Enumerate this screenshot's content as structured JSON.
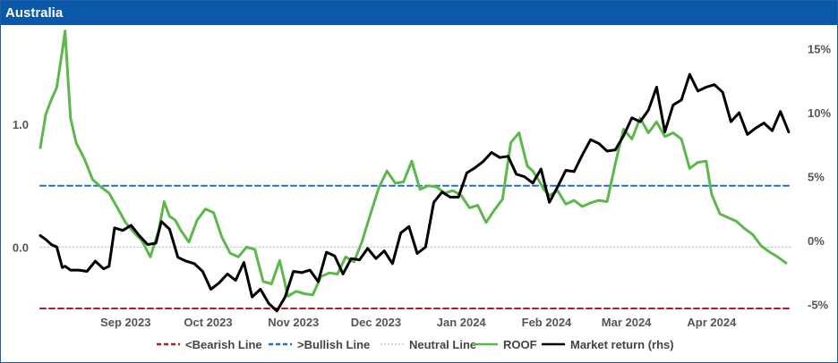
{
  "title": "Australia",
  "colors": {
    "title_bg": "#0b58a8",
    "bearish": "#b01c22",
    "bullish": "#1f6fc5",
    "neutral": "#c8c8c8",
    "roof": "#5cb84a",
    "market": "#000000"
  },
  "chart_data": {
    "type": "line",
    "title": "Australia",
    "x_range": [
      "2023-08-01",
      "2024-04-30"
    ],
    "x_ticks": [
      {
        "date": "2023-09-01",
        "label": "Sep 2023"
      },
      {
        "date": "2023-10-01",
        "label": "Oct 2023"
      },
      {
        "date": "2023-11-01",
        "label": "Nov 2023"
      },
      {
        "date": "2023-12-01",
        "label": "Dec 2023"
      },
      {
        "date": "2024-01-01",
        "label": "Jan 2024"
      },
      {
        "date": "2024-02-01",
        "label": "Feb 2024"
      },
      {
        "date": "2024-03-01",
        "label": "Mar 2024"
      },
      {
        "date": "2024-04-01",
        "label": "Apr 2024"
      }
    ],
    "y_left": {
      "min": -0.5,
      "max": 1.75,
      "ticks": [
        {
          "v": 0.0,
          "label": "0.0"
        },
        {
          "v": 1.0,
          "label": "1.0"
        }
      ]
    },
    "y_right": {
      "min": -5.3,
      "max": 16.3,
      "ticks": [
        {
          "v": -5,
          "label": "-5%"
        },
        {
          "v": 0,
          "label": "0%"
        },
        {
          "v": 5,
          "label": "5%"
        },
        {
          "v": 10,
          "label": "10%"
        },
        {
          "v": 15,
          "label": "15%"
        }
      ]
    },
    "series": [
      {
        "name": "<Bearish Line",
        "axis": "left",
        "style": "dashed",
        "x": [
          "2023-08-01",
          "2024-04-30"
        ],
        "values": [
          -0.5,
          -0.5
        ]
      },
      {
        "name": ">Bullish Line",
        "axis": "left",
        "style": "dashed",
        "x": [
          "2023-08-01",
          "2024-04-30"
        ],
        "values": [
          0.5,
          0.5
        ]
      },
      {
        "name": "Neutral Line",
        "axis": "left",
        "style": "dotted",
        "x": [
          "2023-08-01",
          "2024-04-30"
        ],
        "values": [
          0.0,
          0.0
        ]
      },
      {
        "name": "ROOF",
        "axis": "left",
        "style": "solid",
        "x": [
          "2023-08-01",
          "2023-08-03",
          "2023-08-05",
          "2023-08-07",
          "2023-08-09",
          "2023-08-10",
          "2023-08-11",
          "2023-08-12",
          "2023-08-14",
          "2023-08-17",
          "2023-08-20",
          "2023-08-23",
          "2023-08-26",
          "2023-08-29",
          "2023-09-01",
          "2023-09-04",
          "2023-09-07",
          "2023-09-10",
          "2023-09-13",
          "2023-09-15",
          "2023-09-17",
          "2023-09-19",
          "2023-09-21",
          "2023-09-24",
          "2023-09-27",
          "2023-09-30",
          "2023-10-03",
          "2023-10-06",
          "2023-10-09",
          "2023-10-12",
          "2023-10-15",
          "2023-10-18",
          "2023-10-21",
          "2023-10-24",
          "2023-10-27",
          "2023-10-30",
          "2023-11-02",
          "2023-11-05",
          "2023-11-08",
          "2023-11-11",
          "2023-11-14",
          "2023-11-17",
          "2023-11-20",
          "2023-11-23",
          "2023-11-26",
          "2023-11-29",
          "2023-12-02",
          "2023-12-05",
          "2023-12-08",
          "2023-12-11",
          "2023-12-14",
          "2023-12-17",
          "2023-12-20",
          "2023-12-23",
          "2023-12-26",
          "2023-12-29",
          "2024-01-01",
          "2024-01-04",
          "2024-01-07",
          "2024-01-10",
          "2024-01-13",
          "2024-01-16",
          "2024-01-19",
          "2024-01-22",
          "2024-01-25",
          "2024-01-27",
          "2024-01-29",
          "2024-01-31",
          "2024-02-02",
          "2024-02-05",
          "2024-02-08",
          "2024-02-11",
          "2024-02-14",
          "2024-02-17",
          "2024-02-20",
          "2024-02-23",
          "2024-02-26",
          "2024-02-29",
          "2024-03-03",
          "2024-03-06",
          "2024-03-09",
          "2024-03-12",
          "2024-03-15",
          "2024-03-18",
          "2024-03-21",
          "2024-03-24",
          "2024-03-27",
          "2024-03-30",
          "2024-04-01",
          "2024-04-04",
          "2024-04-07",
          "2024-04-10",
          "2024-04-13",
          "2024-04-16",
          "2024-04-19",
          "2024-04-22",
          "2024-04-25",
          "2024-04-28"
        ],
        "values": [
          0.81,
          1.08,
          1.2,
          1.3,
          1.6,
          1.76,
          1.4,
          1.05,
          0.85,
          0.72,
          0.55,
          0.49,
          0.44,
          0.32,
          0.2,
          0.12,
          0.05,
          -0.08,
          0.13,
          0.37,
          0.25,
          0.22,
          0.14,
          0.04,
          0.22,
          0.31,
          0.28,
          0.08,
          -0.05,
          -0.08,
          0.0,
          -0.02,
          -0.28,
          -0.3,
          -0.11,
          -0.4,
          -0.36,
          -0.38,
          -0.39,
          -0.24,
          -0.21,
          -0.22,
          -0.08,
          -0.12,
          0.05,
          0.27,
          0.48,
          0.62,
          0.52,
          0.53,
          0.7,
          0.47,
          0.5,
          0.49,
          0.44,
          0.46,
          0.42,
          0.32,
          0.34,
          0.2,
          0.3,
          0.39,
          0.85,
          0.93,
          0.66,
          0.62,
          0.55,
          0.47,
          0.42,
          0.46,
          0.35,
          0.38,
          0.33,
          0.36,
          0.38,
          0.37,
          0.68,
          0.96,
          0.88,
          1.05,
          0.93,
          1.02,
          0.9,
          0.93,
          0.88,
          0.64,
          0.69,
          0.7,
          0.43,
          0.27,
          0.24,
          0.21,
          0.15,
          0.1,
          0.01,
          -0.04,
          -0.08,
          -0.13
        ]
      },
      {
        "name": "Market return (rhs)",
        "axis": "right",
        "style": "solid",
        "x": [
          "2023-08-01",
          "2023-08-03",
          "2023-08-05",
          "2023-08-07",
          "2023-08-09",
          "2023-08-10",
          "2023-08-12",
          "2023-08-15",
          "2023-08-18",
          "2023-08-21",
          "2023-08-24",
          "2023-08-26",
          "2023-08-28",
          "2023-08-31",
          "2023-09-03",
          "2023-09-06",
          "2023-09-09",
          "2023-09-12",
          "2023-09-14",
          "2023-09-17",
          "2023-09-20",
          "2023-09-23",
          "2023-09-26",
          "2023-09-29",
          "2023-10-02",
          "2023-10-05",
          "2023-10-08",
          "2023-10-11",
          "2023-10-14",
          "2023-10-17",
          "2023-10-20",
          "2023-10-23",
          "2023-10-26",
          "2023-10-29",
          "2023-11-01",
          "2023-11-04",
          "2023-11-07",
          "2023-11-10",
          "2023-11-13",
          "2023-11-16",
          "2023-11-19",
          "2023-11-22",
          "2023-11-25",
          "2023-11-28",
          "2023-12-01",
          "2023-12-04",
          "2023-12-07",
          "2023-12-10",
          "2023-12-13",
          "2023-12-16",
          "2023-12-19",
          "2023-12-22",
          "2023-12-25",
          "2023-12-28",
          "2023-12-31",
          "2024-01-03",
          "2024-01-06",
          "2024-01-09",
          "2024-01-12",
          "2024-01-15",
          "2024-01-18",
          "2024-01-21",
          "2024-01-24",
          "2024-01-27",
          "2024-01-30",
          "2024-02-02",
          "2024-02-05",
          "2024-02-08",
          "2024-02-11",
          "2024-02-14",
          "2024-02-17",
          "2024-02-20",
          "2024-02-23",
          "2024-02-26",
          "2024-02-29",
          "2024-03-03",
          "2024-03-06",
          "2024-03-09",
          "2024-03-12",
          "2024-03-15",
          "2024-03-18",
          "2024-03-21",
          "2024-03-24",
          "2024-03-27",
          "2024-03-30",
          "2024-04-02",
          "2024-04-05",
          "2024-04-08",
          "2024-04-11",
          "2024-04-14",
          "2024-04-17",
          "2024-04-20",
          "2024-04-23",
          "2024-04-26",
          "2024-04-29"
        ],
        "values": [
          0.4,
          0.1,
          -0.3,
          -0.5,
          -2.1,
          -2.0,
          -2.3,
          -2.3,
          -2.4,
          -1.6,
          -2.2,
          -2.0,
          1.0,
          0.8,
          1.2,
          0.4,
          -0.3,
          -0.2,
          1.5,
          0.9,
          -1.3,
          -1.6,
          -1.8,
          -2.4,
          -3.8,
          -3.3,
          -2.6,
          -3.1,
          -1.7,
          -4.4,
          -3.8,
          -4.9,
          -5.5,
          -4.4,
          -2.4,
          -2.5,
          -2.3,
          -3.2,
          -0.9,
          -1.2,
          -2.6,
          -1.4,
          -1.5,
          -0.6,
          -1.4,
          -0.8,
          -1.8,
          0.6,
          1.1,
          -1.0,
          -0.5,
          3.0,
          3.8,
          3.4,
          3.4,
          5.3,
          5.7,
          6.2,
          6.9,
          6.5,
          6.6,
          5.2,
          5.0,
          4.5,
          5.6,
          3.0,
          4.2,
          5.5,
          5.4,
          6.7,
          7.9,
          7.6,
          7.0,
          7.1,
          8.2,
          9.6,
          9.3,
          10.2,
          12.0,
          8.5,
          10.6,
          11.0,
          13.0,
          11.7,
          12.0,
          12.2,
          11.6,
          9.3,
          10.0,
          8.3,
          8.8,
          9.2,
          8.6,
          10.1,
          8.5
        ]
      }
    ]
  },
  "legend": [
    {
      "label": "<Bearish Line",
      "color": "#b01c22",
      "style": "dashed"
    },
    {
      "label": ">Bullish Line",
      "color": "#1f6fc5",
      "style": "dashed"
    },
    {
      "label": "Neutral Line",
      "color": "#c8c8c8",
      "style": "dotted"
    },
    {
      "label": "ROOF",
      "color": "#5cb84a",
      "style": "solid"
    },
    {
      "label": "Market return (rhs)",
      "color": "#000000",
      "style": "solid"
    }
  ]
}
